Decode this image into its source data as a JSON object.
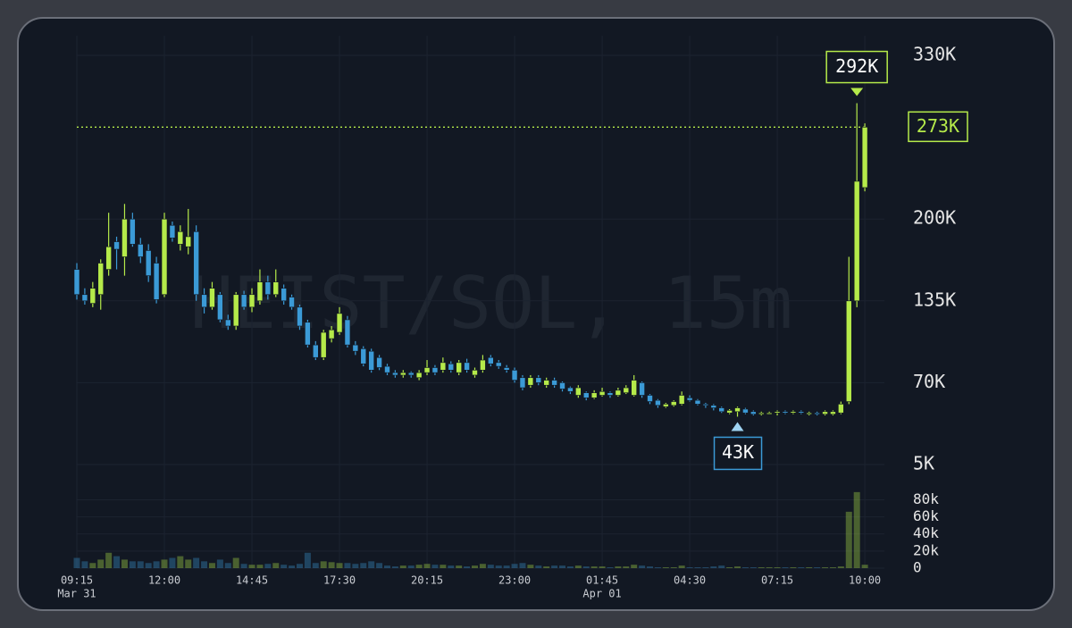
{
  "chart_data": {
    "type": "candlestick",
    "title": "HEIST/SOL, 15m",
    "up_color": "#b5ea4a",
    "down_color": "#3b9ad6",
    "grid": true,
    "categories": [
      "09:15",
      null,
      null,
      null,
      null,
      null,
      null,
      null,
      null,
      null,
      null,
      "12:00",
      null,
      null,
      null,
      null,
      null,
      null,
      null,
      null,
      null,
      null,
      "14:45",
      null,
      null,
      null,
      null,
      null,
      null,
      null,
      null,
      null,
      null,
      "17:30",
      null,
      null,
      null,
      null,
      null,
      null,
      null,
      null,
      null,
      null,
      "20:15",
      null,
      null,
      null,
      null,
      null,
      null,
      null,
      null,
      null,
      null,
      "23:00",
      null,
      null,
      null,
      null,
      null,
      null,
      null,
      null,
      null,
      null,
      "01:45",
      null,
      null,
      null,
      null,
      null,
      null,
      null,
      null,
      null,
      null,
      "04:30",
      null,
      null,
      null,
      null,
      null,
      null,
      null,
      null,
      null,
      null,
      "07:15",
      null,
      null,
      null,
      null,
      null,
      null,
      null,
      null,
      null,
      null,
      "10:00"
    ],
    "dates": [
      "Mar 31",
      null,
      null,
      null,
      null,
      null,
      null,
      null,
      null,
      null,
      null,
      null,
      null,
      null,
      null,
      null,
      null,
      null,
      null,
      null,
      null,
      null,
      null,
      null,
      null,
      null,
      null,
      null,
      null,
      null,
      null,
      null,
      null,
      null,
      null,
      null,
      null,
      null,
      null,
      null,
      null,
      null,
      null,
      null,
      null,
      null,
      null,
      null,
      null,
      null,
      null,
      null,
      null,
      null,
      null,
      null,
      null,
      null,
      null,
      null,
      null,
      null,
      null,
      null,
      null,
      null,
      "Apr 01",
      null,
      null,
      null,
      null,
      null,
      null,
      null,
      null,
      null,
      null,
      null,
      null,
      null,
      null,
      null,
      null,
      null,
      null,
      null,
      null,
      null,
      null,
      null,
      null,
      null,
      null,
      null,
      null,
      null,
      null,
      null,
      null,
      null
    ],
    "ohlc": [
      [
        160000.0,
        165000.0,
        136000.0,
        140000.0
      ],
      [
        140000.0,
        145000.0,
        132000.0,
        135000.0
      ],
      [
        133000.0,
        150000.0,
        130000.0,
        145000.0
      ],
      [
        140000.0,
        168000.0,
        128000.0,
        165000.0
      ],
      [
        160000.0,
        205000.0,
        155000.0,
        178000.0
      ],
      [
        182000.0,
        186000.0,
        160000.0,
        176000.0
      ],
      [
        170000.0,
        212000.0,
        155000.0,
        200000.0
      ],
      [
        200000.0,
        205000.0,
        178000.0,
        180000.0
      ],
      [
        180000.0,
        185000.0,
        165000.0,
        170000.0
      ],
      [
        175000.0,
        180000.0,
        150000.0,
        155000.0
      ],
      [
        165000.0,
        170000.0,
        133000.0,
        136000.0
      ],
      [
        140000.0,
        205000.0,
        138000.0,
        200000.0
      ],
      [
        195000.0,
        198000.0,
        182000.0,
        185000.0
      ],
      [
        180000.0,
        195000.0,
        175000.0,
        190000.0
      ],
      [
        178000.0,
        208000.0,
        172000.0,
        186000.0
      ],
      [
        190000.0,
        195000.0,
        135000.0,
        140000.0
      ],
      [
        140000.0,
        145000.0,
        125000.0,
        130000.0
      ],
      [
        130000.0,
        150000.0,
        128000.0,
        145000.0
      ],
      [
        140000.0,
        142000.0,
        118000.0,
        120000.0
      ],
      [
        120000.0,
        124000.0,
        112000.0,
        115000.0
      ],
      [
        115000.0,
        142000.0,
        112000.0,
        140000.0
      ],
      [
        140000.0,
        143000.0,
        128000.0,
        130000.0
      ],
      [
        130000.0,
        145000.0,
        126000.0,
        140000.0
      ],
      [
        135000.0,
        160000.0,
        132000.0,
        150000.0
      ],
      [
        150000.0,
        155000.0,
        136000.0,
        140000.0
      ],
      [
        140000.0,
        160000.0,
        138000.0,
        150000.0
      ],
      [
        145000.0,
        148000.0,
        132000.0,
        135000.0
      ],
      [
        138000.0,
        140000.0,
        128000.0,
        130000.0
      ],
      [
        130000.0,
        132000.0,
        112000.0,
        115000.0
      ],
      [
        118000.0,
        120000.0,
        98000.0,
        100000.0
      ],
      [
        100000.0,
        103000.0,
        88000.0,
        90000.0
      ],
      [
        90000.0,
        112000.0,
        88000.0,
        110000.0
      ],
      [
        105000.0,
        115000.0,
        102000.0,
        112000.0
      ],
      [
        110000.0,
        130000.0,
        108000.0,
        125000.0
      ],
      [
        120000.0,
        123000.0,
        98000.0,
        100000.0
      ],
      [
        100000.0,
        103000.0,
        92000.0,
        95000.0
      ],
      [
        97000.0,
        99000.0,
        83000.0,
        85000.0
      ],
      [
        95000.0,
        97000.0,
        78000.0,
        80000.0
      ],
      [
        90000.0,
        92000.0,
        80000.0,
        82000.0
      ],
      [
        83000.0,
        85000.0,
        76000.0,
        78000.0
      ],
      [
        78000.0,
        80000.0,
        74000.0,
        76000.0
      ],
      [
        76000.0,
        80000.0,
        74000.0,
        78000.0
      ],
      [
        78000.0,
        79000.0,
        74000.0,
        76000.0
      ],
      [
        74000.0,
        80000.0,
        72000.0,
        78000.0
      ],
      [
        78000.0,
        88000.0,
        76000.0,
        82000.0
      ],
      [
        82000.0,
        84000.0,
        76000.0,
        78000.0
      ],
      [
        80000.0,
        90000.0,
        78000.0,
        86000.0
      ],
      [
        85000.0,
        87000.0,
        78000.0,
        80000.0
      ],
      [
        78000.0,
        88000.0,
        76000.0,
        86000.0
      ],
      [
        86000.0,
        89000.0,
        78000.0,
        80000.0
      ],
      [
        76000.0,
        82000.0,
        74000.0,
        80000.0
      ],
      [
        80000.0,
        92000.0,
        78000.0,
        88000.0
      ],
      [
        90000.0,
        92000.0,
        83000.0,
        85000.0
      ],
      [
        86000.0,
        88000.0,
        81000.0,
        83000.0
      ],
      [
        82000.0,
        84000.0,
        78000.0,
        80000.0
      ],
      [
        80000.0,
        82000.0,
        70000.0,
        72000.0
      ],
      [
        74000.0,
        76000.0,
        64000.0,
        66000.0
      ],
      [
        68000.0,
        76000.0,
        66000.0,
        74000.0
      ],
      [
        74000.0,
        76000.0,
        68000.0,
        70000.0
      ],
      [
        68000.0,
        74000.0,
        66000.0,
        72000.0
      ],
      [
        72000.0,
        74000.0,
        66000.0,
        68000.0
      ],
      [
        70000.0,
        71000.0,
        63000.0,
        65000.0
      ],
      [
        66000.0,
        67000.0,
        61000.0,
        63000.0
      ],
      [
        60000.0,
        68000.0,
        58000.0,
        66000.0
      ],
      [
        62000.0,
        63000.0,
        56000.0,
        58000.0
      ],
      [
        58000.0,
        64000.0,
        57000.0,
        62000.0
      ],
      [
        60000.0,
        66000.0,
        59000.0,
        63000.0
      ],
      [
        62000.0,
        63000.0,
        58000.0,
        60000.0
      ],
      [
        60000.0,
        66000.0,
        59000.0,
        64000.0
      ],
      [
        62000.0,
        68000.0,
        61000.0,
        66000.0
      ],
      [
        60000.0,
        76000.0,
        59000.0,
        72000.0
      ],
      [
        70000.0,
        71000.0,
        58000.0,
        60000.0
      ],
      [
        60000.0,
        61000.0,
        53000.0,
        55000.0
      ],
      [
        56000.0,
        57000.0,
        50000.0,
        52000.0
      ],
      [
        51000.0,
        54000.0,
        50000.0,
        53000.0
      ],
      [
        52000.0,
        56000.0,
        51000.0,
        55000.0
      ],
      [
        53000.0,
        63000.0,
        52000.0,
        60000.0
      ],
      [
        58000.0,
        60000.0,
        55000.0,
        56000.0
      ],
      [
        56000.0,
        57000.0,
        52000.0,
        53000.0
      ],
      [
        53000.0,
        54000.0,
        50000.0,
        52000.0
      ],
      [
        52000.0,
        53000.0,
        48000.0,
        50000.0
      ],
      [
        50000.0,
        51000.0,
        46000.0,
        47000.0
      ],
      [
        46000.0,
        49000.0,
        45000.0,
        48000.0
      ],
      [
        47000.0,
        51000.0,
        43000.0,
        50000.0
      ],
      [
        49000.0,
        50000.0,
        45000.0,
        46000.0
      ],
      [
        47000.0,
        48000.0,
        44000.0,
        45000.0
      ],
      [
        45000.0,
        47000.0,
        44000.0,
        46000.0
      ],
      [
        46000.0,
        47000.0,
        45000.0,
        46000.0
      ],
      [
        46000.0,
        48000.0,
        44000.0,
        47000.0
      ],
      [
        47000.0,
        48000.0,
        45000.0,
        46000.0
      ],
      [
        46000.0,
        48000.0,
        45000.0,
        47000.0
      ],
      [
        47000.0,
        48000.0,
        45000.0,
        46000.0
      ],
      [
        45000.0,
        47000.0,
        44000.0,
        46000.0
      ],
      [
        46000.0,
        47000.0,
        44000.0,
        45000.0
      ],
      [
        45000.0,
        48000.0,
        44000.0,
        47000.0
      ],
      [
        45000.0,
        48000.0,
        44000.0,
        47000.0
      ],
      [
        46000.0,
        55000.0,
        45000.0,
        53000.0
      ],
      [
        55000.0,
        170000.0,
        53000.0,
        135000.0
      ],
      [
        135000.0,
        292000.0,
        130000.0,
        230000.0
      ],
      [
        225000.0,
        276000.0,
        222000.0,
        273000.0
      ]
    ],
    "ylim": [
      5000.0,
      330000.0
    ],
    "yticks": [
      {
        "value": 5000.0,
        "label": "5K"
      },
      {
        "value": 70000.0,
        "label": "70K"
      },
      {
        "value": 135000.0,
        "label": "135K"
      },
      {
        "value": 200000.0,
        "label": "200K"
      },
      {
        "value": 330000.0,
        "label": "330K"
      }
    ],
    "high_label": {
      "value": 292000.0,
      "label": "292K"
    },
    "low_label": {
      "value": 43000.0,
      "label": "43K"
    },
    "last_price": {
      "value": 273000.0,
      "label": "273K"
    },
    "volume": {
      "values": [
        12000.0,
        8000.0,
        6000.0,
        10000.0,
        18000.0,
        14000.0,
        10000.0,
        8000.0,
        8000.0,
        6000.0,
        8000.0,
        10000.0,
        12000.0,
        14000.0,
        10000.0,
        12000.0,
        8000.0,
        6000.0,
        10000.0,
        6000.0,
        12000.0,
        5000.0,
        4000.0,
        4000.0,
        5000.0,
        6000.0,
        4000.0,
        3000.0,
        5000.0,
        18000.0,
        6000.0,
        8000.0,
        7000.0,
        6000.0,
        6000.0,
        5000.0,
        6000.0,
        8000.0,
        6000.0,
        3000.0,
        2000.0,
        3000.0,
        3000.0,
        4000.0,
        5000.0,
        4000.0,
        4000.0,
        3000.0,
        3000.0,
        2000.0,
        3000.0,
        5000.0,
        4000.0,
        3000.0,
        3000.0,
        5000.0,
        6000.0,
        4000.0,
        3000.0,
        2000.0,
        3000.0,
        3000.0,
        2000.0,
        3000.0,
        2000.0,
        2000.0,
        2000.0,
        1000.0,
        2000.0,
        2000.0,
        4000.0,
        3000.0,
        2000.0,
        1000.0,
        1000.0,
        1000.0,
        3000.0,
        1000.0,
        1000.0,
        1000.0,
        2000.0,
        3000.0,
        1000.0,
        2000.0,
        1000.0,
        1000.0,
        1000.0,
        1000.0,
        1000.0,
        1000.0,
        1000.0,
        1000.0,
        1000.0,
        1000.0,
        1000.0,
        1000.0,
        2000.0,
        66000.0,
        89000.0,
        4000.0
      ],
      "ylim": [
        0,
        92000.0
      ],
      "yticks": [
        0,
        {
          "value": 20000.0,
          "label": "20k"
        },
        {
          "value": 40000.0,
          "label": "40k"
        },
        {
          "value": 60000.0,
          "label": "60k"
        },
        {
          "value": 80000.0,
          "label": "80k"
        }
      ]
    }
  }
}
